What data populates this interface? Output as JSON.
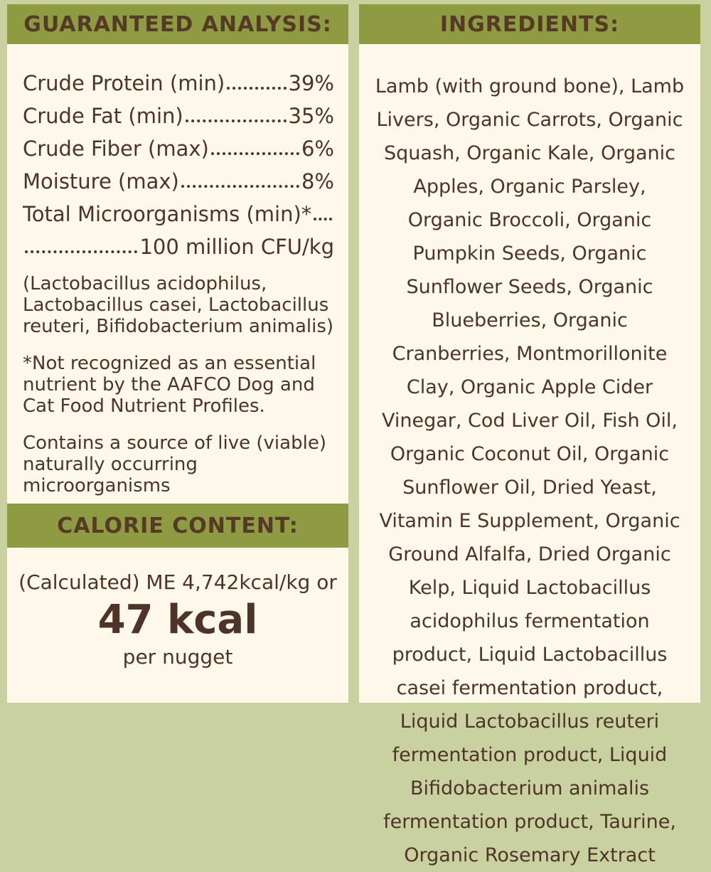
{
  "colors": {
    "olive_header": "#8f9b42",
    "sage_border": "#c9d1a0",
    "panel_cream": "#fdf8e9",
    "text_brown": "#4e3428"
  },
  "guaranteed_analysis": {
    "title": "GUARANTEED ANALYSIS:",
    "rows": [
      {
        "label": "Crude Protein (min)",
        "value": "39%"
      },
      {
        "label": "Crude Fat (min)",
        "value": "35%"
      },
      {
        "label": "Crude Fiber (max)",
        "value": "6%"
      },
      {
        "label": "Moisture (max)",
        "value": "8%"
      },
      {
        "label": "Total Microorganisms (min)*",
        "value": ""
      },
      {
        "label": "",
        "value": "100 million CFU/kg"
      }
    ],
    "notes": [
      "(Lactobacillus acidophilus, Lactobacillus casei, Lactobacillus reuteri, Bifidobacterium animalis)",
      "*Not recognized as an essential nutrient by the AAFCO Dog and Cat Food Nutrient Profiles.",
      "Contains a source of live (viable) naturally occurring microorganisms"
    ]
  },
  "calorie_content": {
    "title": "CALORIE CONTENT:",
    "calculated_line": "(Calculated) ME 4,742kcal/kg or",
    "kcal_value": "47 kcal",
    "per_line": "per nugget"
  },
  "ingredients": {
    "title": "INGREDIENTS:",
    "list_text": "Lamb (with ground bone), Lamb Livers, Organic Carrots, Organic Squash, Organic Kale, Organic Apples, Organic Parsley, Organic Broccoli, Organic Pumpkin Seeds, Organic Sunflower Seeds, Organic Blueberries, Organic Cranberries, Montmorillonite Clay, Organic Apple Cider Vinegar, Cod Liver Oil, Fish Oil, Organic Coconut Oil, Organic Sunflower Oil, Dried Yeast, Vitamin E Supplement, Organic Ground Alfalfa, Dried Organic Kelp, Liquid Lactobacillus acidophilus fermentation product, Liquid Lactobacillus casei fermentation product, Liquid Lactobacillus reuteri fermentation product, Liquid Bifidobacterium animalis fermentation product, Taurine, Organic Rosemary Extract"
  }
}
